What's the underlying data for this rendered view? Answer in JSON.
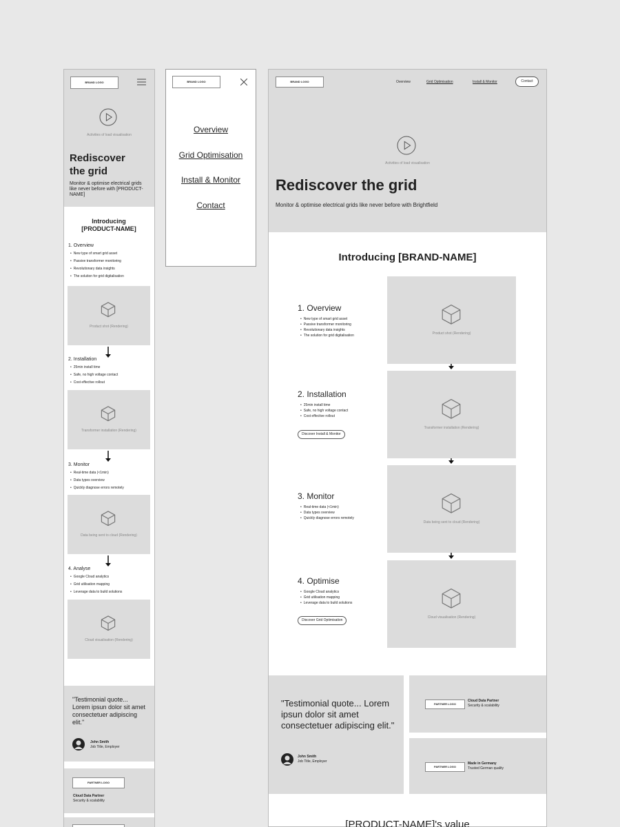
{
  "mobile": {
    "logo": "BRAND LOGO",
    "video_caption": "Activities of load visualisation",
    "hero_title": "Rediscover the grid",
    "hero_text": "Monitor & optimise electrical grids like never before with [PRODUCT-NAME]",
    "intro": "Introducing [PRODUCT-NAME]",
    "steps": [
      {
        "title": "1. Overview",
        "bullets": [
          "New type of smart grid asset",
          "Passive transformer monitoring",
          "Revolutionary data insights",
          "The solution for grid digitalisation"
        ],
        "caption": "Product shot (Rendering)"
      },
      {
        "title": "2. Installation",
        "bullets": [
          "25min install time",
          "Safe, no high voltage contact",
          "Cost effective rollout"
        ],
        "caption": "Transformer installation (Rendering)"
      },
      {
        "title": "3. Monitor",
        "bullets": [
          "Real-time data (<1min)",
          "Data types overview",
          "Quickly diagnose errors remotely"
        ],
        "caption": "Data being sent to cloud (Rendering)"
      },
      {
        "title": "4. Analyse",
        "bullets": [
          "Google Cloud analytics",
          "Grid utilisation mapping",
          "Leverage data to build solutions"
        ],
        "caption": "Cloud visualisation (Rendering)"
      }
    ],
    "testimonial": {
      "quote": "\"Testimonial quote... Lorem ipsun dolor sit amet consectetuer adipiscing elit.\"",
      "name": "John Smith",
      "role": "Job Title, Employer"
    },
    "partner": {
      "logo": "PARTNER LOGO",
      "title": "Cloud Data Partner",
      "subtitle": "Security & scalability"
    }
  },
  "menu": {
    "logo": "BRAND LOGO",
    "items": [
      "Overview",
      "Grid Optimisation",
      "Install & Monitor",
      "Contact"
    ]
  },
  "desktop": {
    "logo": "BRAND LOGO",
    "nav": [
      "Overview",
      "Grid Optimisation",
      "Install & Monitor"
    ],
    "contact": "Contact",
    "video_caption": "Activities of load visualisation",
    "hero_title": "Rediscover the grid",
    "hero_text": "Monitor & optimise electrical grids like never before with Brightfield",
    "intro": "Introducing [BRAND-NAME]",
    "steps": [
      {
        "title": "1. Overview",
        "bullets": [
          "New type of smart grid asset",
          "Passive transformer monitoring",
          "Revolutionary data insights",
          "The solution for grid digitalisation"
        ],
        "caption": "Product shot (Rendering)"
      },
      {
        "title": "2. Installation",
        "bullets": [
          "25min install time",
          "Safe, no high voltage contact",
          "Cost effective rollout"
        ],
        "button": "Discover Install & Monitor",
        "caption": "Transformer installation (Rendering)"
      },
      {
        "title": "3. Monitor",
        "bullets": [
          "Real-time data (<1min)",
          "Data types overview",
          "Quickly diagnose errors remotely"
        ],
        "caption": "Data being sent to cloud (Rendering)"
      },
      {
        "title": "4. Optimise",
        "bullets": [
          "Google Cloud analytics",
          "Grid utilisation mapping",
          "Leverage data to build solutions"
        ],
        "button": "Discover Grid Optimisation",
        "caption": "Cloud visualisation (Rendering)"
      }
    ],
    "testimonial": {
      "quote": "\"Testimonial quote... Lorem ipsun dolor sit amet consectetuer adipiscing elit.\"",
      "name": "John Smith",
      "role": "Job Title, Employer"
    },
    "partners": [
      {
        "logo": "PARTNER LOGO",
        "title": "Cloud Data Partner",
        "subtitle": "Security & scalability"
      },
      {
        "logo": "PARTNER LOGO",
        "title": "Made in Germany",
        "subtitle": "Trusted German quality"
      }
    ],
    "value_heading": "[PRODUCT-NAME]'s value"
  }
}
